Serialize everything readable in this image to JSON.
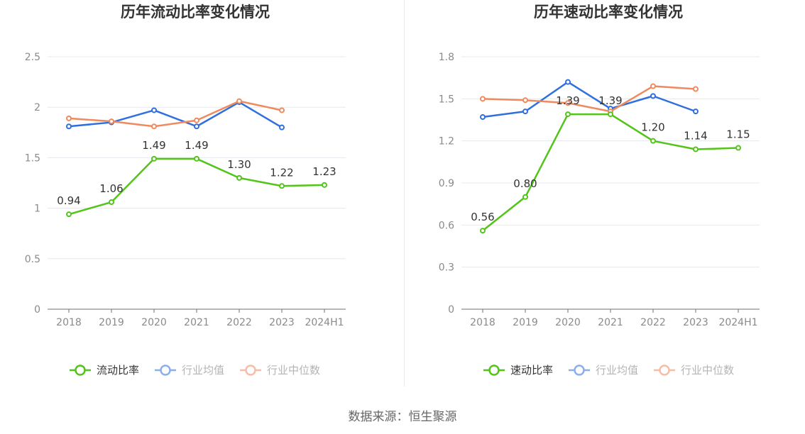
{
  "colors": {
    "company": "#52c41a",
    "industry_avg": "#2f6fde",
    "industry_median": "#ef8a5f",
    "grid": "#e6e8ee",
    "axis_text": "#8a8a8a",
    "label_text": "#333333",
    "title_text": "#333333"
  },
  "source": "数据来源：恒生聚源",
  "chart_data": [
    {
      "type": "line",
      "title": "历年流动比率变化情况",
      "categories": [
        "2018",
        "2019",
        "2020",
        "2021",
        "2022",
        "2023",
        "2024H1"
      ],
      "y_ticks": [
        "0",
        "0.5",
        "1",
        "1.5",
        "2",
        "2.5"
      ],
      "ylim": [
        0,
        2.5
      ],
      "series": [
        {
          "name": "流动比率",
          "values": [
            0.94,
            1.06,
            1.49,
            1.49,
            1.3,
            1.22,
            1.23
          ],
          "labels": [
            "0.94",
            "1.06",
            "1.49",
            "1.49",
            "1.30",
            "1.22",
            "1.23"
          ]
        },
        {
          "name": "行业均值",
          "values": [
            1.81,
            1.85,
            1.97,
            1.81,
            2.05,
            1.8,
            null
          ]
        },
        {
          "name": "行业中位数",
          "values": [
            1.89,
            1.86,
            1.81,
            1.87,
            2.06,
            1.97,
            null
          ]
        }
      ]
    },
    {
      "type": "line",
      "title": "历年速动比率变化情况",
      "categories": [
        "2018",
        "2019",
        "2020",
        "2021",
        "2022",
        "2023",
        "2024H1"
      ],
      "y_ticks": [
        "0",
        "0.3",
        "0.6",
        "0.9",
        "1.2",
        "1.5",
        "1.8"
      ],
      "ylim": [
        0,
        1.8
      ],
      "series": [
        {
          "name": "速动比率",
          "values": [
            0.56,
            0.8,
            1.39,
            1.39,
            1.2,
            1.14,
            1.15
          ],
          "labels": [
            "0.56",
            "0.80",
            "1.39",
            "1.39",
            "1.20",
            "1.14",
            "1.15"
          ]
        },
        {
          "name": "行业均值",
          "values": [
            1.37,
            1.41,
            1.62,
            1.43,
            1.52,
            1.41,
            null
          ]
        },
        {
          "name": "行业中位数",
          "values": [
            1.5,
            1.49,
            1.47,
            1.41,
            1.59,
            1.57,
            null
          ]
        }
      ]
    }
  ]
}
